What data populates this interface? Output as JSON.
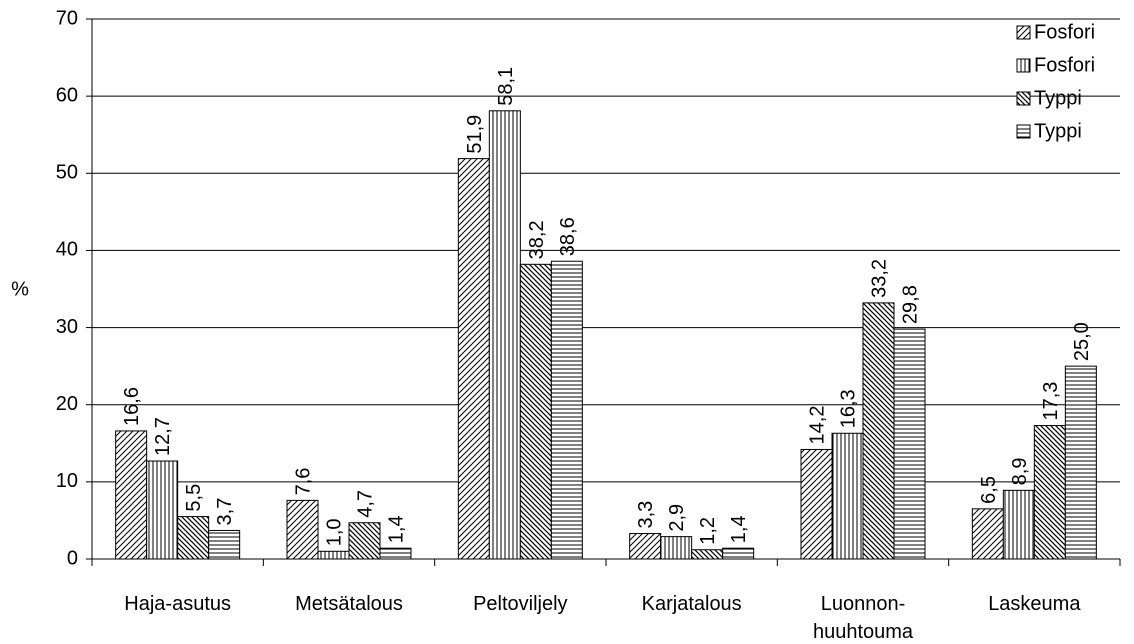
{
  "chart_data": {
    "type": "bar",
    "y_label": "%",
    "categories": [
      "Haja-asutus",
      "Metsätalous",
      "Peltoviljely",
      "Karjatalous",
      "Luonnon-\nhuuhtouma",
      "Laskeuma"
    ],
    "series": [
      {
        "name": "Fosfori",
        "color": "#000000",
        "pattern": "diagonal-up",
        "values": [
          16.6,
          7.6,
          51.9,
          3.3,
          14.2,
          6.5
        ],
        "value_labels": [
          "16,6",
          "7,6",
          "51,9",
          "3,3",
          "14,2",
          "6,5"
        ]
      },
      {
        "name": "Fosfori",
        "color": "#000000",
        "pattern": "vertical",
        "values": [
          12.7,
          1.0,
          58.1,
          2.9,
          16.3,
          8.9
        ],
        "value_labels": [
          "12,7",
          "1,0",
          "58,1",
          "2,9",
          "16,3",
          "8,9"
        ]
      },
      {
        "name": "Typpi",
        "color": "#000000",
        "pattern": "diagonal-down",
        "values": [
          5.5,
          4.7,
          38.2,
          1.2,
          33.2,
          17.3
        ],
        "value_labels": [
          "5,5",
          "4,7",
          "38,2",
          "1,2",
          "33,2",
          "17,3"
        ]
      },
      {
        "name": "Typpi",
        "color": "#000000",
        "pattern": "horizontal",
        "values": [
          3.7,
          1.4,
          38.6,
          1.4,
          29.8,
          25.0
        ],
        "value_labels": [
          "3,7",
          "1,4",
          "38,6",
          "1,4",
          "29,8",
          "25,0"
        ]
      }
    ],
    "ylim": [
      0,
      70
    ],
    "yticks": [
      0,
      10,
      20,
      30,
      40,
      50,
      60,
      70
    ],
    "grid": true,
    "legend": "top-right"
  }
}
